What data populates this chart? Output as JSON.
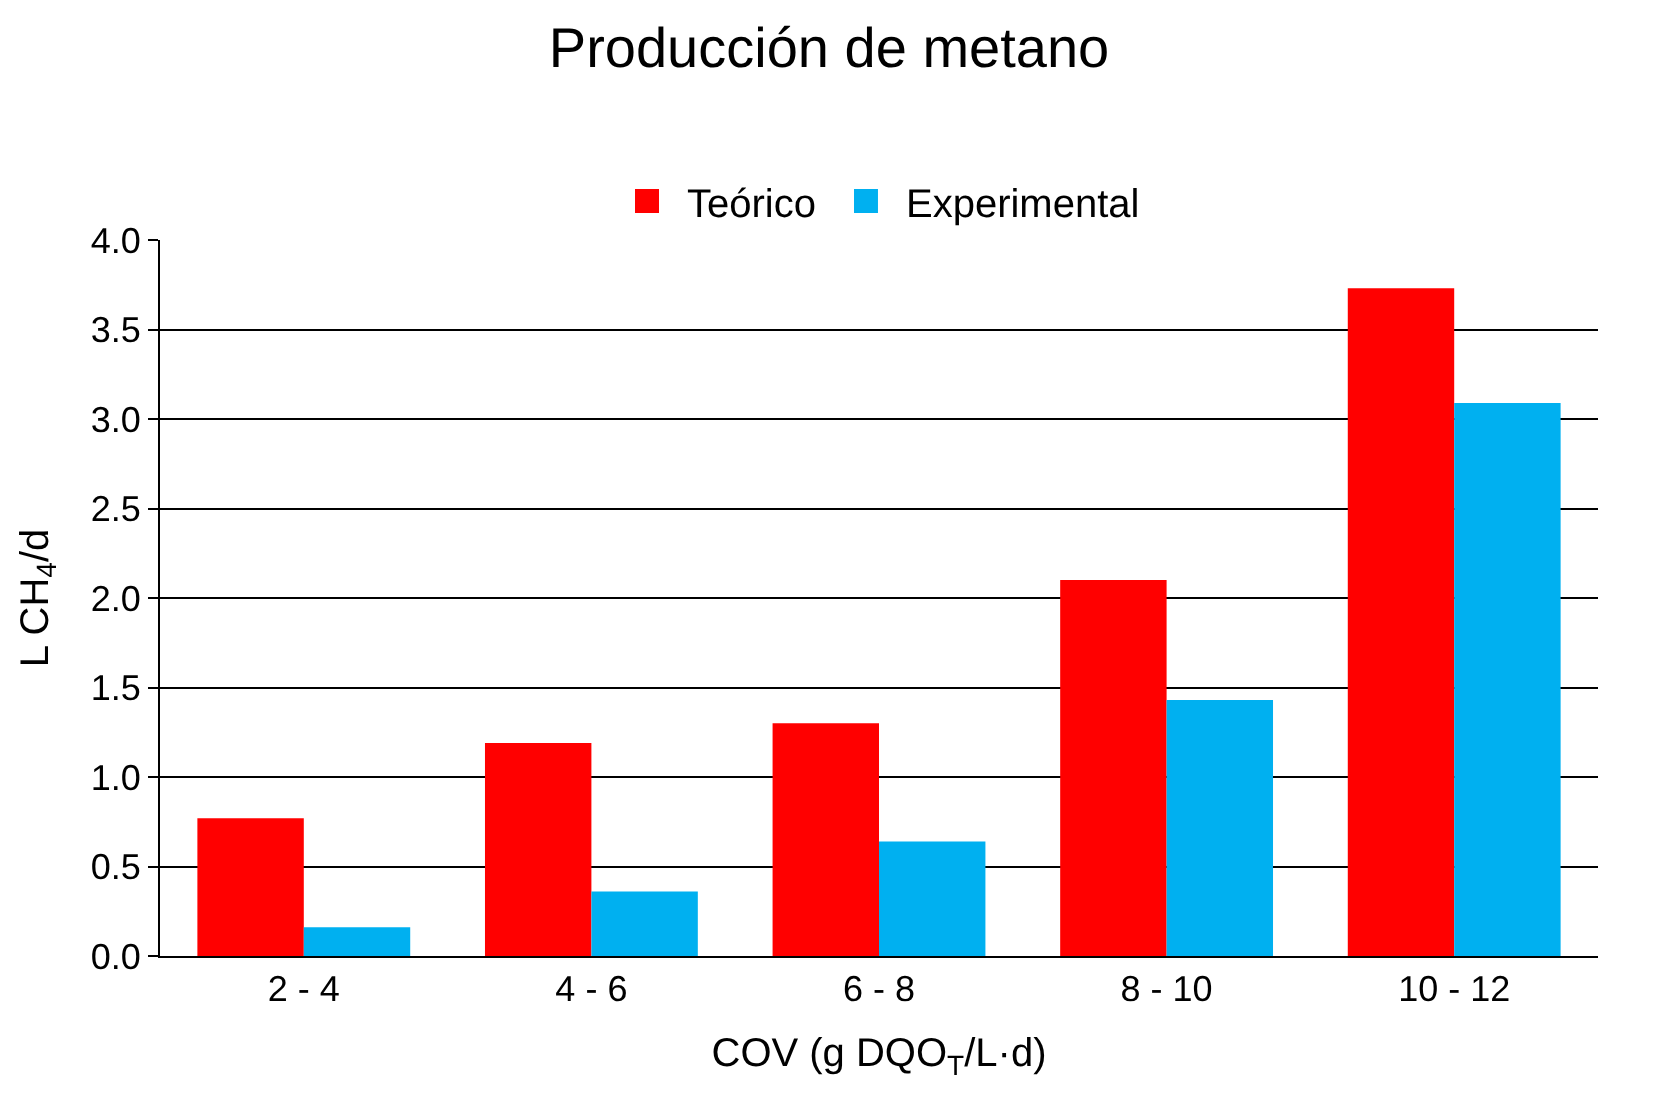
{
  "chart_data": {
    "type": "bar",
    "title": "Producción de metano",
    "xlabel": "COV (g DQO$_{T}$/L·d)",
    "ylabel": "L CH$_{4}$/d",
    "categories": [
      "2 - 4",
      "4 - 6",
      "6 - 8",
      "8 - 10",
      "10 - 12"
    ],
    "series": [
      {
        "name": "Teórico",
        "color": "#ff0000",
        "values": [
          0.77,
          1.19,
          1.3,
          2.1,
          3.73
        ]
      },
      {
        "name": "Experimental",
        "color": "#00b0f0",
        "values": [
          0.16,
          0.36,
          0.64,
          1.43,
          3.09
        ]
      }
    ],
    "ylim": [
      0,
      4
    ],
    "yticks": [
      {
        "value": 0,
        "label": "0.0"
      },
      {
        "value": 0.5,
        "label": "0.5"
      },
      {
        "value": 1,
        "label": "1.0"
      },
      {
        "value": 1.5,
        "label": "1.5"
      },
      {
        "value": 2,
        "label": "2.0"
      },
      {
        "value": 2.5,
        "label": "2.5"
      },
      {
        "value": 3,
        "label": "3.0"
      },
      {
        "value": 3.5,
        "label": "3.5"
      },
      {
        "value": 4,
        "label": "4.0"
      }
    ],
    "grid": "y",
    "legend": "top"
  }
}
